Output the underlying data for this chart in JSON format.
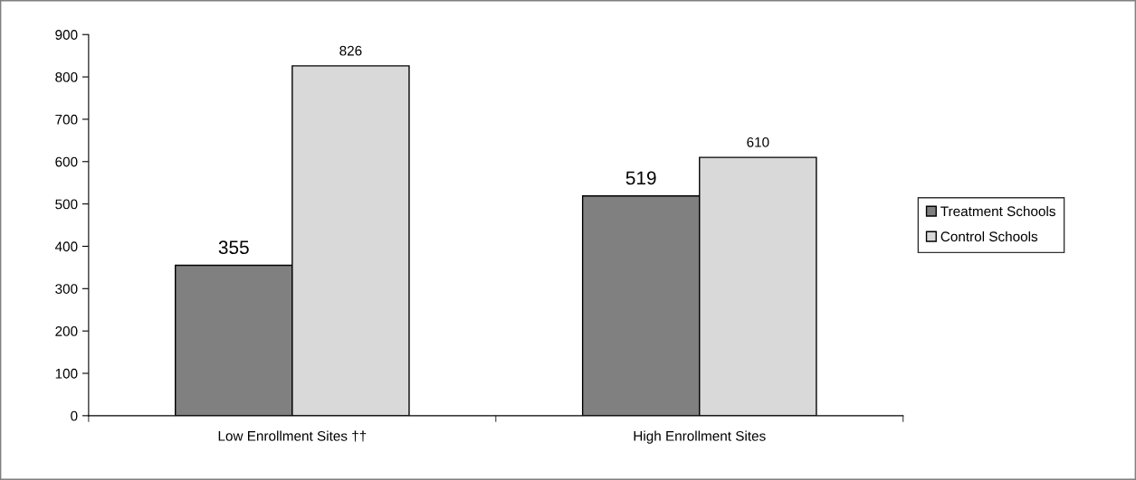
{
  "chart_data": {
    "type": "bar",
    "categories": [
      "Low Enrollment Sites ††",
      "High Enrollment Sites"
    ],
    "series": [
      {
        "name": "Treatment Schools",
        "color": "#808080",
        "values": [
          355,
          519
        ]
      },
      {
        "name": "Control Schools",
        "color": "#d9d9d9",
        "values": [
          826,
          610
        ]
      }
    ],
    "ylim": [
      0,
      900
    ],
    "yticks": [
      0,
      100,
      200,
      300,
      400,
      500,
      600,
      700,
      800,
      900
    ],
    "data_labels": true,
    "grid": false,
    "legend": "right"
  }
}
